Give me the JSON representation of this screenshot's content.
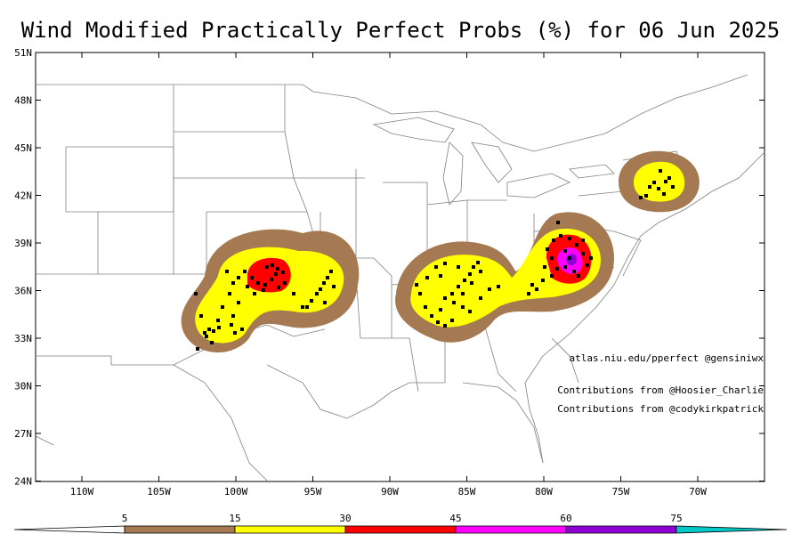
{
  "title": "Wind Modified Practically Perfect Probs (%) for 06 Jun 2025",
  "latitude_ticks": [
    "51N",
    "48N",
    "45N",
    "42N",
    "39N",
    "36N",
    "33N",
    "30N",
    "27N",
    "24N"
  ],
  "longitude_ticks": [
    "110W",
    "105W",
    "100W",
    "95W",
    "90W",
    "85W",
    "80W",
    "75W",
    "70W"
  ],
  "annotations": {
    "source": "atlas.niu.edu/pperfect @gensiniwx",
    "contrib_1": "Contributions from @Hoosier_Charlie",
    "contrib_2": "Contributions from @codykirkpatrick"
  },
  "colorbar": {
    "labels": [
      "5",
      "15",
      "30",
      "45",
      "60",
      "75"
    ],
    "colors": [
      "#a57a52",
      "#ffff00",
      "#ff0000",
      "#ff00ff",
      "#8c00d4",
      "#00c8c8"
    ]
  },
  "colors": {
    "p5": "#a57a52",
    "p15": "#ffff00",
    "p30": "#ff0000",
    "p45": "#ff00ff",
    "p60": "#8c00d4",
    "boundary": "#808080",
    "report": "#000000"
  }
}
